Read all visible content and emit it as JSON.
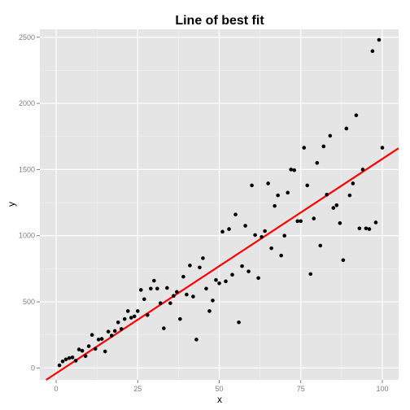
{
  "chart_data": {
    "type": "scatter",
    "title": "Line of best fit",
    "xlabel": "x",
    "ylabel": "y",
    "xlim": [
      -5,
      105
    ],
    "ylim": [
      -90,
      2560
    ],
    "x_ticks": [
      0,
      25,
      50,
      75,
      100
    ],
    "y_ticks": [
      0,
      500,
      1000,
      1500,
      2000,
      2500
    ],
    "grid": true,
    "legend": "none",
    "colors": {
      "panel_background": "#e5e5e5",
      "grid_major": "#ffffff",
      "grid_minor": "#f2f2f2",
      "points": "#000000",
      "fit_line": "#ff0000"
    },
    "series": [
      {
        "points": [
          [
            1,
            20
          ],
          [
            2,
            50
          ],
          [
            3,
            65
          ],
          [
            4,
            75
          ],
          [
            5,
            80
          ],
          [
            6,
            55
          ],
          [
            7,
            140
          ],
          [
            8,
            130
          ],
          [
            9,
            90
          ],
          [
            10,
            165
          ],
          [
            11,
            250
          ],
          [
            12,
            145
          ],
          [
            13,
            215
          ],
          [
            14,
            220
          ],
          [
            15,
            125
          ],
          [
            16,
            275
          ],
          [
            17,
            245
          ],
          [
            18,
            280
          ],
          [
            19,
            345
          ],
          [
            20,
            295
          ],
          [
            21,
            370
          ],
          [
            22,
            430
          ],
          [
            23,
            380
          ],
          [
            24,
            390
          ],
          [
            25,
            430
          ],
          [
            26,
            590
          ],
          [
            27,
            520
          ],
          [
            28,
            400
          ],
          [
            29,
            600
          ],
          [
            30,
            660
          ],
          [
            31,
            600
          ],
          [
            32,
            490
          ],
          [
            33,
            300
          ],
          [
            34,
            605
          ],
          [
            35,
            490
          ],
          [
            36,
            545
          ],
          [
            37,
            575
          ],
          [
            38,
            370
          ],
          [
            39,
            690
          ],
          [
            40,
            555
          ],
          [
            41,
            775
          ],
          [
            42,
            540
          ],
          [
            43,
            215
          ],
          [
            44,
            760
          ],
          [
            45,
            830
          ],
          [
            46,
            600
          ],
          [
            47,
            430
          ],
          [
            48,
            510
          ],
          [
            49,
            665
          ],
          [
            50,
            640
          ],
          [
            51,
            1030
          ],
          [
            52,
            655
          ],
          [
            53,
            1050
          ],
          [
            54,
            705
          ],
          [
            55,
            1160
          ],
          [
            56,
            345
          ],
          [
            57,
            770
          ],
          [
            58,
            1075
          ],
          [
            59,
            730
          ],
          [
            60,
            1380
          ],
          [
            61,
            1005
          ],
          [
            62,
            680
          ],
          [
            63,
            990
          ],
          [
            64,
            1035
          ],
          [
            65,
            1395
          ],
          [
            66,
            905
          ],
          [
            67,
            1225
          ],
          [
            68,
            1305
          ],
          [
            69,
            850
          ],
          [
            70,
            1000
          ],
          [
            71,
            1325
          ],
          [
            72,
            1500
          ],
          [
            73,
            1495
          ],
          [
            74,
            1110
          ],
          [
            75,
            1110
          ],
          [
            76,
            1665
          ],
          [
            77,
            1380
          ],
          [
            78,
            710
          ],
          [
            79,
            1130
          ],
          [
            80,
            1550
          ],
          [
            81,
            925
          ],
          [
            82,
            1675
          ],
          [
            83,
            1310
          ],
          [
            84,
            1755
          ],
          [
            85,
            1210
          ],
          [
            86,
            1230
          ],
          [
            87,
            1095
          ],
          [
            88,
            815
          ],
          [
            89,
            1810
          ],
          [
            90,
            1305
          ],
          [
            91,
            1395
          ],
          [
            92,
            1910
          ],
          [
            93,
            1055
          ],
          [
            94,
            1500
          ],
          [
            95,
            1055
          ],
          [
            96,
            1050
          ],
          [
            97,
            2395
          ],
          [
            98,
            1100
          ],
          [
            99,
            2480
          ],
          [
            100,
            1665
          ]
        ]
      }
    ],
    "fit_line": {
      "slope": 16.2,
      "intercept": -40
    }
  }
}
